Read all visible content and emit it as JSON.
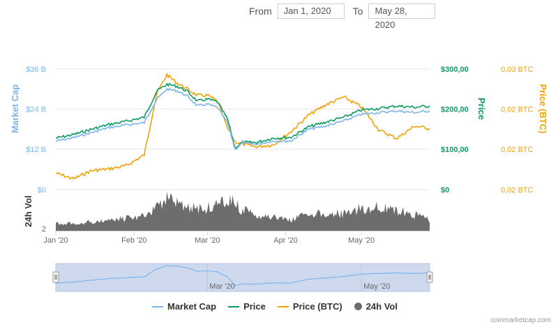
{
  "range": {
    "from_label": "From",
    "from_value": "Jan 1, 2020",
    "to_label": "To",
    "to_value": "May 28, 2020"
  },
  "credit": "coinmarketcap.com",
  "colors": {
    "market_cap": "#7cb5ec",
    "price": "#0c9a64",
    "price_btc": "#f0a30a",
    "volume": "#6d6d6d",
    "grid": "#e6e6e6",
    "navigator_fill": "#cfd9ee"
  },
  "chart_data": {
    "type": "line",
    "x_range": [
      "Jan 1, 2020",
      "May 28, 2020"
    ],
    "x_ticks": [
      "Jan '20",
      "Feb '20",
      "Mar '20",
      "Apr '20",
      "May '20"
    ],
    "navigator_ticks": [
      "Mar '20",
      "May '20"
    ],
    "axes": {
      "market_cap": {
        "label": "Market Cap",
        "ticks": [
          "$0",
          "$12 B",
          "$24 B",
          "$36 B"
        ],
        "range_billion": [
          0,
          36
        ]
      },
      "price": {
        "label": "Price",
        "ticks": [
          "$0",
          "$100,00",
          "$200,00",
          "$300,00"
        ],
        "range": [
          0,
          300
        ]
      },
      "price_btc": {
        "label": "Price (BTC)",
        "ticks": [
          "0,02 BTC",
          "0,02 BTC",
          "0,02 BTC",
          "0,03 BTC"
        ],
        "range": [
          0.0158,
          0.0304
        ]
      },
      "volume": {
        "label": "24h Vol",
        "ticks": [
          "2"
        ]
      }
    },
    "legend": [
      "Market Cap",
      "Price",
      "Price (BTC)",
      "24h Vol"
    ],
    "dates": [
      "Jan 1",
      "Jan 8",
      "Jan 15",
      "Jan 22",
      "Jan 29",
      "Feb 5",
      "Feb 10",
      "Feb 14",
      "Feb 18",
      "Feb 22",
      "Feb 26",
      "Mar 1",
      "Mar 5",
      "Mar 9",
      "Mar 12",
      "Mar 15",
      "Mar 20",
      "Mar 27",
      "Apr 3",
      "Apr 10",
      "Apr 17",
      "Apr 24",
      "May 1",
      "May 8",
      "May 15",
      "May 22",
      "May 28"
    ],
    "series": [
      {
        "name": "Market Cap",
        "unit": "billion USD",
        "values": [
          14.5,
          15.5,
          17.0,
          18.5,
          19.3,
          20.0,
          27.0,
          30.0,
          29.5,
          28.0,
          25.0,
          25.5,
          24.5,
          20.0,
          12.0,
          14.0,
          13.5,
          14.5,
          14.5,
          18.0,
          19.0,
          20.5,
          22.5,
          23.0,
          23.5,
          23.0,
          23.5
        ]
      },
      {
        "name": "Price",
        "unit": "USD",
        "values": [
          128,
          137,
          150,
          162,
          170,
          180,
          245,
          262,
          257,
          245,
          220,
          225,
          218,
          175,
          104,
          118,
          117,
          128,
          130,
          156,
          168,
          180,
          198,
          202,
          208,
          205,
          208
        ]
      },
      {
        "name": "Price (BTC)",
        "unit": "BTC",
        "values": [
          0.0178,
          0.0171,
          0.0181,
          0.0183,
          0.0187,
          0.02,
          0.0275,
          0.0297,
          0.0287,
          0.028,
          0.0272,
          0.0272,
          0.0265,
          0.0232,
          0.0216,
          0.0213,
          0.021,
          0.0212,
          0.0228,
          0.0248,
          0.0261,
          0.027,
          0.0258,
          0.023,
          0.022,
          0.0235,
          0.0232
        ]
      },
      {
        "name": "24h Vol",
        "unit": "relative",
        "values": [
          0.8,
          0.8,
          0.9,
          1.1,
          1.3,
          1.6,
          2.4,
          3.3,
          3.1,
          2.6,
          2.2,
          2.4,
          2.7,
          3.0,
          3.0,
          2.2,
          1.8,
          1.4,
          1.2,
          1.7,
          1.9,
          1.8,
          2.3,
          2.5,
          2.2,
          1.7,
          1.1
        ]
      }
    ]
  }
}
